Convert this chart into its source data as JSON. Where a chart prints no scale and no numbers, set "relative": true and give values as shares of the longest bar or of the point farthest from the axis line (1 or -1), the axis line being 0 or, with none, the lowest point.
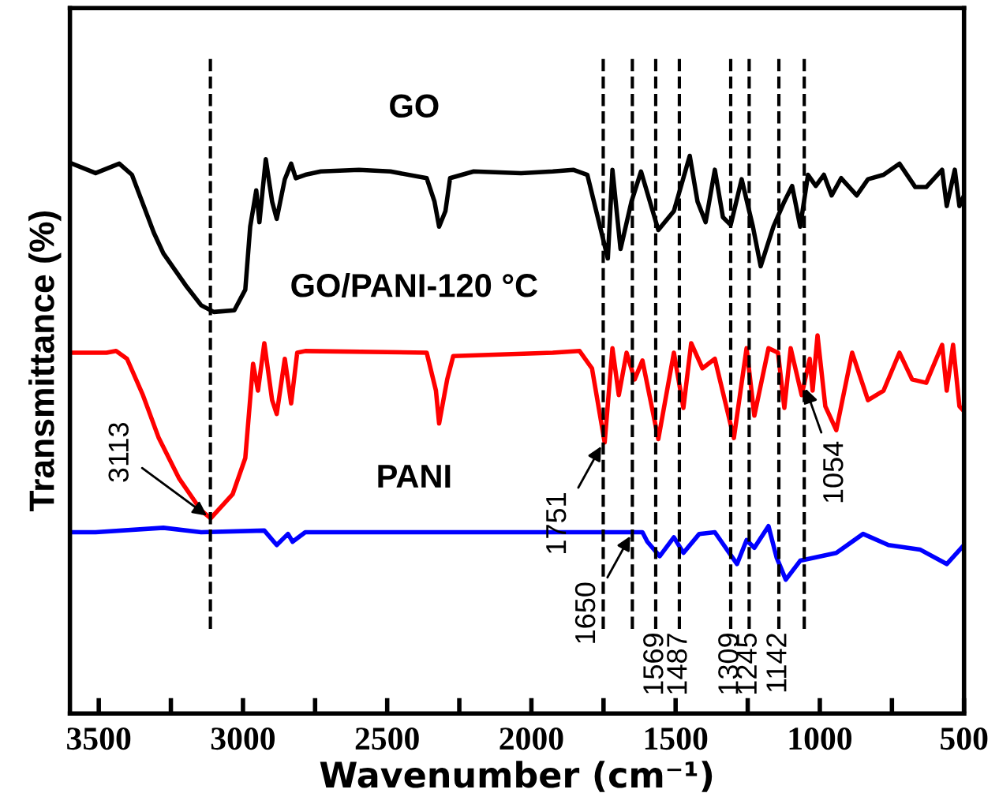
{
  "chart_data": {
    "type": "line",
    "relative": true,
    "xlabel": "Wavenumber (cm⁻¹)",
    "ylabel": "Transmittance (%)",
    "xlim": [
      3600,
      500
    ],
    "xticks": [
      3500,
      {
        "value": 3250,
        "label": null
      },
      3000,
      {
        "value": 2750,
        "label": null
      },
      2500,
      {
        "value": 2250,
        "label": null
      },
      2000,
      {
        "value": 1750,
        "label": null
      },
      1500,
      {
        "value": 1250,
        "label": null
      },
      1000,
      {
        "value": 750,
        "label": null
      },
      500
    ],
    "grid": false,
    "legend": false,
    "marker": "none",
    "line_style": "solid",
    "series": [
      {
        "name": "GO",
        "color": "#000000",
        "x": [
          3593,
          3511,
          3429,
          3385,
          3309,
          3276,
          3199,
          3145,
          3101,
          3030,
          2992,
          2975,
          2954,
          2943,
          2921,
          2899,
          2883,
          2855,
          2833,
          2817,
          2784,
          2730,
          2598,
          2489,
          2363,
          2336,
          2320,
          2298,
          2282,
          2200,
          2036,
          1926,
          1855,
          1806,
          1762,
          1735,
          1719,
          1691,
          1653,
          1620,
          1560,
          1506,
          1451,
          1424,
          1396,
          1364,
          1336,
          1309,
          1271,
          1232,
          1205,
          1161,
          1123,
          1096,
          1068,
          1041,
          1014,
          986,
          959,
          926,
          872,
          833,
          779,
          724,
          669,
          631,
          576,
          560,
          532,
          516,
          500
        ],
        "values": [
          0.986,
          0.969,
          0.986,
          0.966,
          0.862,
          0.825,
          0.768,
          0.732,
          0.72,
          0.723,
          0.76,
          0.873,
          0.938,
          0.881,
          0.994,
          0.918,
          0.887,
          0.958,
          0.986,
          0.96,
          0.966,
          0.972,
          0.975,
          0.972,
          0.96,
          0.918,
          0.873,
          0.901,
          0.96,
          0.972,
          0.969,
          0.972,
          0.975,
          0.966,
          0.873,
          0.816,
          0.975,
          0.833,
          0.918,
          0.972,
          0.867,
          0.901,
          1.0,
          0.918,
          0.881,
          0.975,
          0.89,
          0.876,
          0.958,
          0.873,
          0.802,
          0.873,
          0.918,
          0.946,
          0.873,
          0.966,
          0.946,
          0.966,
          0.929,
          0.96,
          0.929,
          0.958,
          0.966,
          0.986,
          0.944,
          0.944,
          0.975,
          0.91,
          0.975,
          0.91,
          0.929
        ]
      },
      {
        "name": "GO/PANI-120 °C",
        "color": "#ff0000",
        "x": [
          3593,
          3511,
          3473,
          3440,
          3402,
          3347,
          3292,
          3221,
          3145,
          3112,
          3036,
          2992,
          2965,
          2948,
          2926,
          2899,
          2883,
          2855,
          2833,
          2812,
          2784,
          2363,
          2331,
          2320,
          2292,
          2271,
          1926,
          1833,
          1790,
          1746,
          1719,
          1697,
          1670,
          1642,
          1615,
          1560,
          1506,
          1473,
          1446,
          1407,
          1364,
          1298,
          1254,
          1227,
          1178,
          1145,
          1123,
          1101,
          1063,
          1035,
          1025,
          1008,
          981,
          943,
          888,
          833,
          779,
          724,
          680,
          631,
          576,
          560,
          538,
          516,
          500
        ],
        "values": [
          0.647,
          0.647,
          0.647,
          0.65,
          0.636,
          0.571,
          0.494,
          0.421,
          0.364,
          0.35,
          0.393,
          0.458,
          0.627,
          0.579,
          0.664,
          0.562,
          0.537,
          0.636,
          0.556,
          0.647,
          0.65,
          0.647,
          0.579,
          0.52,
          0.599,
          0.641,
          0.647,
          0.65,
          0.619,
          0.486,
          0.655,
          0.571,
          0.647,
          0.599,
          0.633,
          0.492,
          0.647,
          0.548,
          0.664,
          0.619,
          0.636,
          0.494,
          0.655,
          0.534,
          0.655,
          0.647,
          0.548,
          0.655,
          0.571,
          0.636,
          0.579,
          0.678,
          0.551,
          0.508,
          0.647,
          0.562,
          0.579,
          0.647,
          0.599,
          0.593,
          0.661,
          0.579,
          0.661,
          0.551,
          0.542
        ]
      },
      {
        "name": "PANI",
        "color": "#0000ff",
        "x": [
          3593,
          3511,
          3276,
          3145,
          2926,
          2883,
          2844,
          2828,
          2784,
          1926,
          1615,
          1598,
          1555,
          1506,
          1473,
          1418,
          1364,
          1287,
          1254,
          1227,
          1178,
          1150,
          1118,
          1068,
          943,
          850,
          762,
          653,
          560,
          500
        ],
        "values": [
          0.325,
          0.325,
          0.333,
          0.325,
          0.328,
          0.302,
          0.322,
          0.308,
          0.325,
          0.325,
          0.325,
          0.308,
          0.282,
          0.316,
          0.288,
          0.322,
          0.325,
          0.268,
          0.311,
          0.297,
          0.336,
          0.28,
          0.24,
          0.274,
          0.288,
          0.322,
          0.302,
          0.294,
          0.268,
          0.302
        ]
      }
    ],
    "ref_lines": [
      {
        "axis": "x",
        "value": 3113,
        "line_style": "dashed",
        "color": "#000000"
      },
      {
        "axis": "x",
        "value": 1751,
        "line_style": "dashed",
        "color": "#000000"
      },
      {
        "axis": "x",
        "value": 1650,
        "line_style": "dashed",
        "color": "#000000"
      },
      {
        "axis": "x",
        "value": 1569,
        "label": "1569",
        "line_style": "dashed",
        "color": "#000000"
      },
      {
        "axis": "x",
        "value": 1487,
        "label": "1487",
        "line_style": "dashed",
        "color": "#000000"
      },
      {
        "axis": "x",
        "value": 1309,
        "label": "1309",
        "line_style": "dashed",
        "color": "#000000"
      },
      {
        "axis": "x",
        "value": 1245,
        "label": "1245",
        "line_style": "dashed",
        "color": "#000000"
      },
      {
        "axis": "x",
        "value": 1142,
        "label": "1142",
        "line_style": "dashed",
        "color": "#000000"
      },
      {
        "axis": "x",
        "value": 1054,
        "line_style": "dashed",
        "color": "#000000"
      }
    ],
    "annotations": [
      {
        "text": "3113",
        "x": 3113,
        "y": 0.35
      },
      {
        "text": "1751",
        "x": 1751,
        "y": 0.486
      },
      {
        "text": "1054",
        "x": 1054,
        "y": 0.59
      },
      {
        "text": "1650",
        "x": 1650,
        "y": 0.325
      }
    ]
  }
}
